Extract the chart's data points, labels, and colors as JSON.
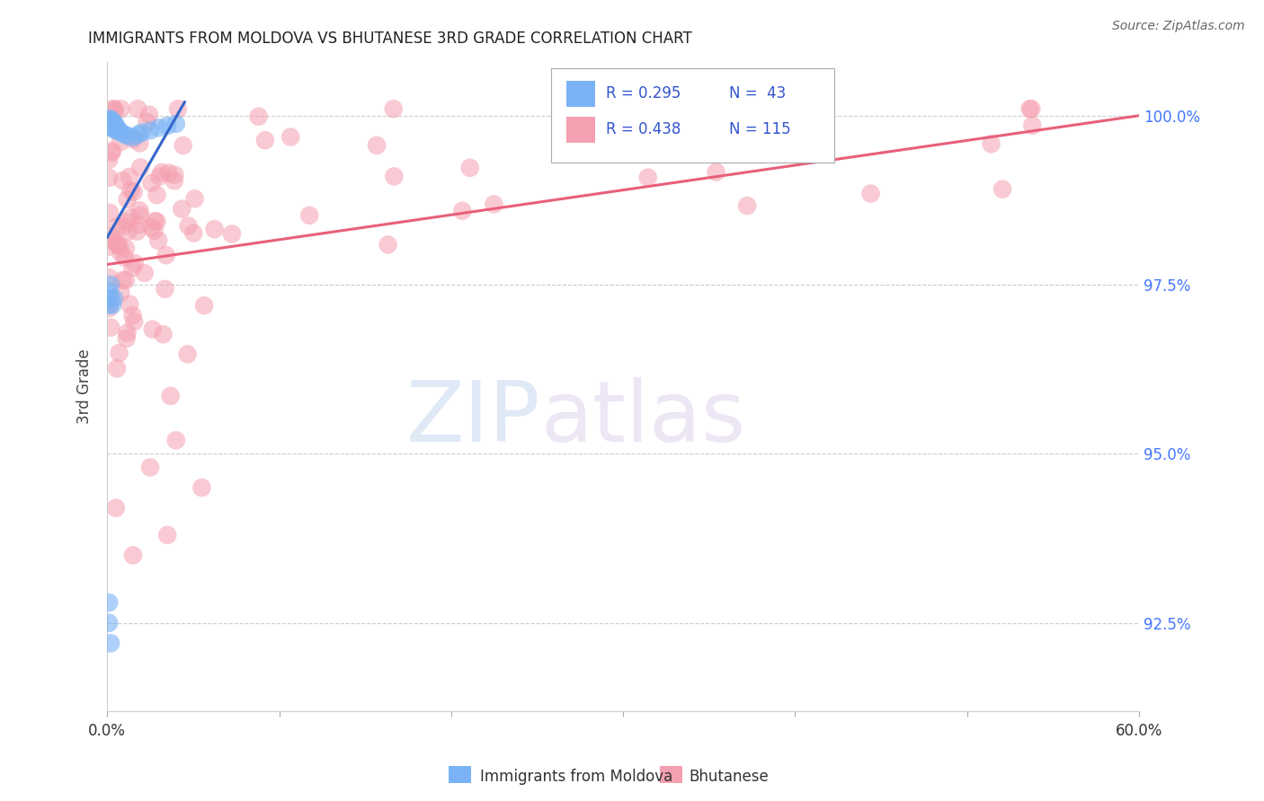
{
  "title": "IMMIGRANTS FROM MOLDOVA VS BHUTANESE 3RD GRADE CORRELATION CHART",
  "source": "Source: ZipAtlas.com",
  "ylabel": "3rd Grade",
  "yticks": [
    "92.5%",
    "95.0%",
    "97.5%",
    "100.0%"
  ],
  "ytick_vals": [
    0.925,
    0.95,
    0.975,
    1.0
  ],
  "xmin": 0.0,
  "xmax": 0.6,
  "ymin": 0.912,
  "ymax": 1.008,
  "moldova_color": "#7ab3f5",
  "bhutanese_color": "#f5a0b0",
  "moldova_line_color": "#3366cc",
  "bhutanese_line_color": "#e8607a",
  "legend_r_moldova": "R = 0.295",
  "legend_n_moldova": "N =  43",
  "legend_r_bhutanese": "R = 0.438",
  "legend_n_bhutanese": "N = 115",
  "watermark_zip": "ZIP",
  "watermark_atlas": "atlas"
}
